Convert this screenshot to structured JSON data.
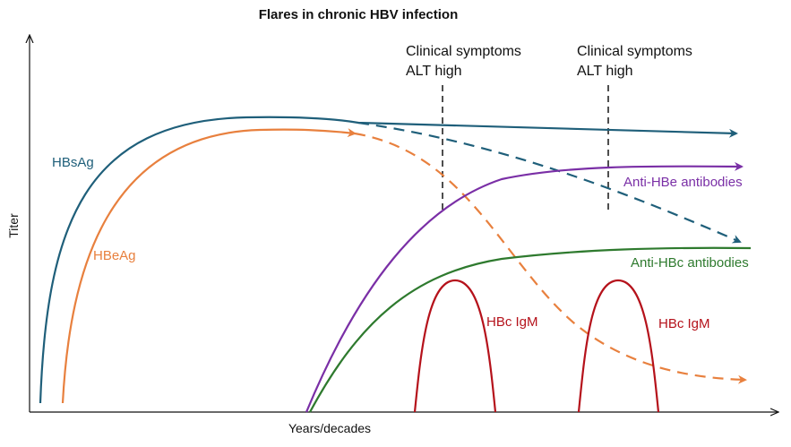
{
  "title": "Flares in chronic HBV infection",
  "axes": {
    "y_label": "Titer",
    "x_label": "Years/decades"
  },
  "annotations": [
    {
      "line1": "Clinical symptoms",
      "line2": "ALT high"
    },
    {
      "line1": "Clinical symptoms",
      "line2": "ALT high"
    }
  ],
  "curves": {
    "hbsag": {
      "label": "HBsAg",
      "color": "#1f5f7a"
    },
    "hbeag": {
      "label": "HBeAg",
      "color": "#e8803e"
    },
    "anti_hbe": {
      "label": "Anti-HBe antibodies",
      "color": "#7a2fa6"
    },
    "anti_hbc": {
      "label": "Anti-HBc antibodies",
      "color": "#2e7a2e"
    },
    "hbc_igm_1": {
      "label": "HBc IgM",
      "color": "#b5121b"
    },
    "hbc_igm_2": {
      "label": "HBc IgM",
      "color": "#b5121b"
    }
  }
}
